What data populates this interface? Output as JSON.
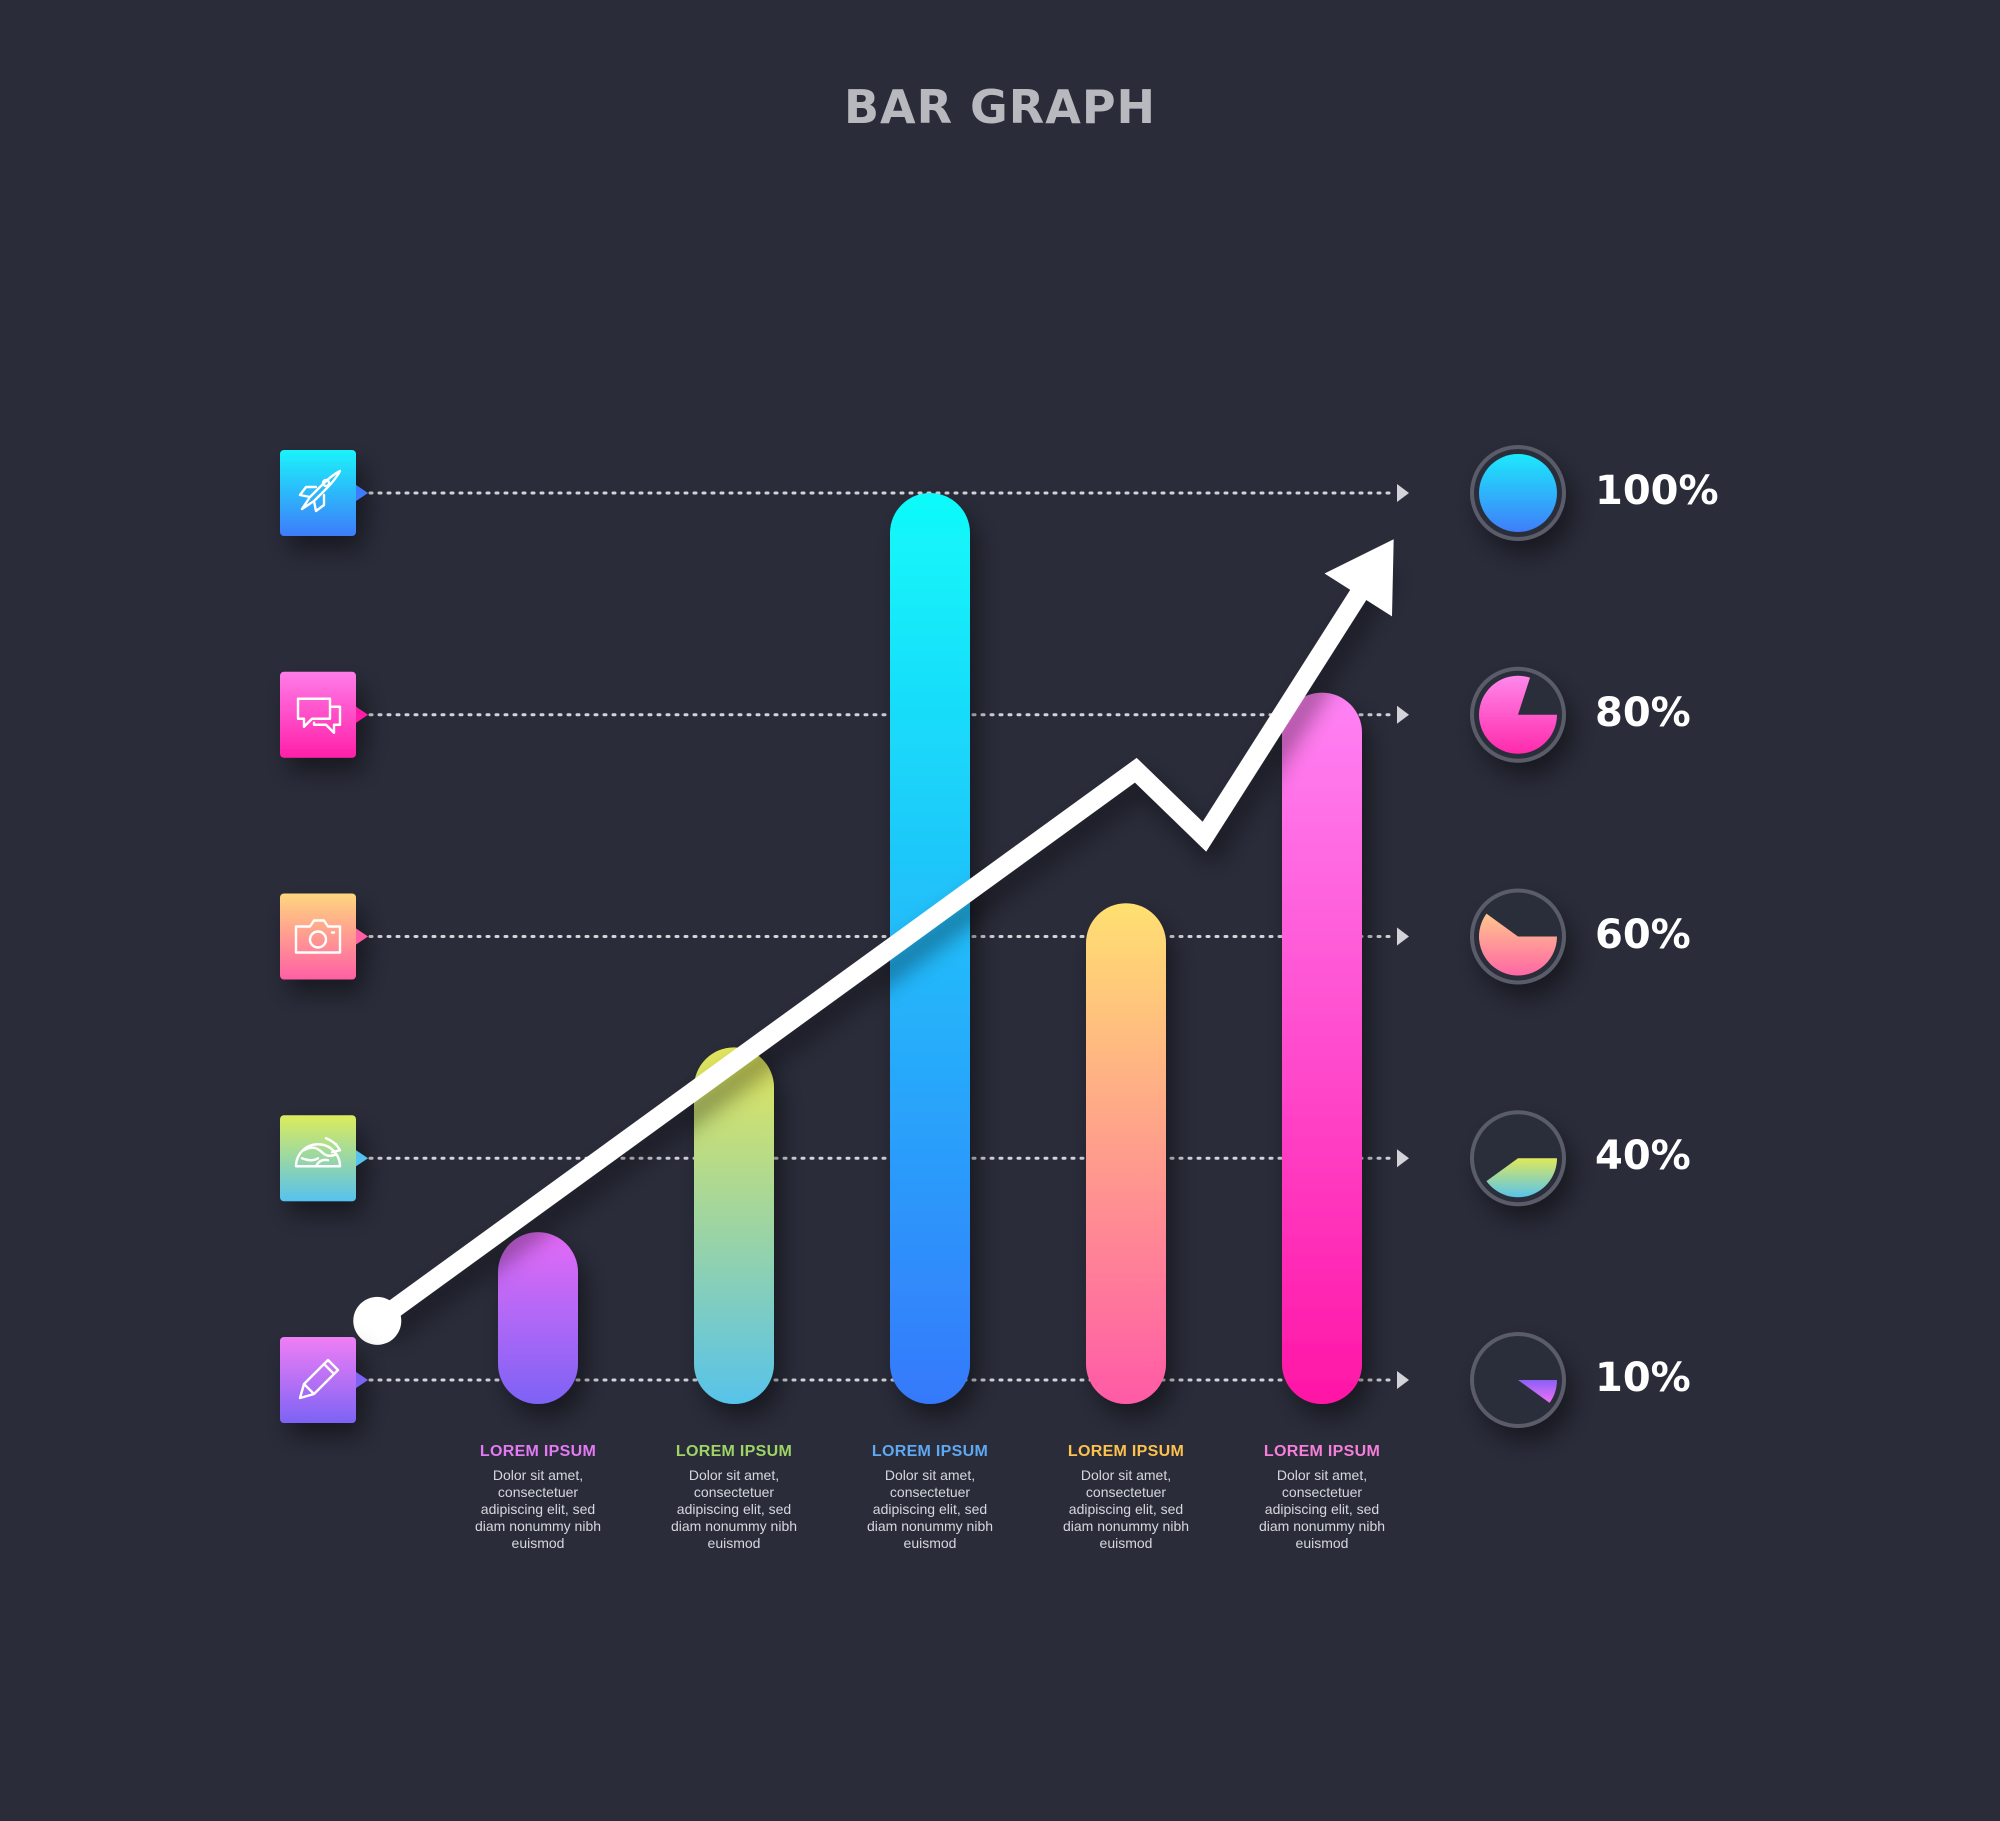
{
  "chart_data": {
    "type": "bar",
    "title": "BAR GRAPH",
    "categories": [
      "LOREM IPSUM",
      "LOREM IPSUM",
      "LOREM IPSUM",
      "LOREM IPSUM",
      "LOREM IPSUM"
    ],
    "values": [
      30,
      50,
      100,
      63,
      82
    ],
    "ylim": [
      10,
      100
    ],
    "y_ticks": [
      "10%",
      "40%",
      "60%",
      "80%",
      "100%"
    ],
    "y_tick_values": [
      10,
      40,
      60,
      80,
      100
    ],
    "grid": true,
    "bar_descriptions": [
      [
        "Dolor sit amet,",
        "consectetuer",
        "adipiscing elit, sed",
        "diam nonummy nibh",
        "euismod"
      ],
      [
        "Dolor sit amet,",
        "consectetuer",
        "adipiscing elit, sed",
        "diam nonummy nibh",
        "euismod"
      ],
      [
        "Dolor sit amet,",
        "consectetuer",
        "adipiscing elit, sed",
        "diam nonummy nibh",
        "euismod"
      ],
      [
        "Dolor sit amet,",
        "consectetuer",
        "adipiscing elit, sed",
        "diam nonummy nibh",
        "euismod"
      ],
      [
        "Dolor sit amet,",
        "consectetuer",
        "adipiscing elit, sed",
        "diam nonummy nibh",
        "euismod"
      ]
    ],
    "bar_colors": [
      [
        "#e46bf7",
        "#7d63f5"
      ],
      [
        "#e4e65a",
        "#57c3ea"
      ],
      [
        "#10fbfa",
        "#3579fb"
      ],
      [
        "#ffe071",
        "#ff5aa7"
      ],
      [
        "#ff82f4",
        "#ff16a6"
      ]
    ],
    "label_colors": [
      "#e37af4",
      "#9ed465",
      "#5fa8f2",
      "#fdc24d",
      "#f57fd9"
    ],
    "trend_line": {
      "x": [
        -0.82,
        3.05,
        3.4,
        4.3
      ],
      "y": [
        18,
        75,
        69,
        94
      ]
    },
    "left_icons": [
      "pencil-icon",
      "earth-icon",
      "camera-icon",
      "chat-icon",
      "rocket-icon"
    ],
    "left_icon_colors": [
      [
        "#f07ef5",
        "#7d63f5"
      ],
      [
        "#dcec5b",
        "#56c2ee"
      ],
      [
        "#ffd67e",
        "#ff5fa4"
      ],
      [
        "#ff7de8",
        "#ff1fa8"
      ],
      [
        "#1cf3fa",
        "#3d7cfa"
      ]
    ],
    "tick_pie_colors": [
      [
        "#8a60f5",
        "#f071f7"
      ],
      [
        "#dfe95b",
        "#58c3ec"
      ],
      [
        "#ffc58d",
        "#ff67a4"
      ],
      [
        "#ff87ea",
        "#ff2aac"
      ],
      [
        "#1de9fb",
        "#3f7efa"
      ]
    ]
  }
}
